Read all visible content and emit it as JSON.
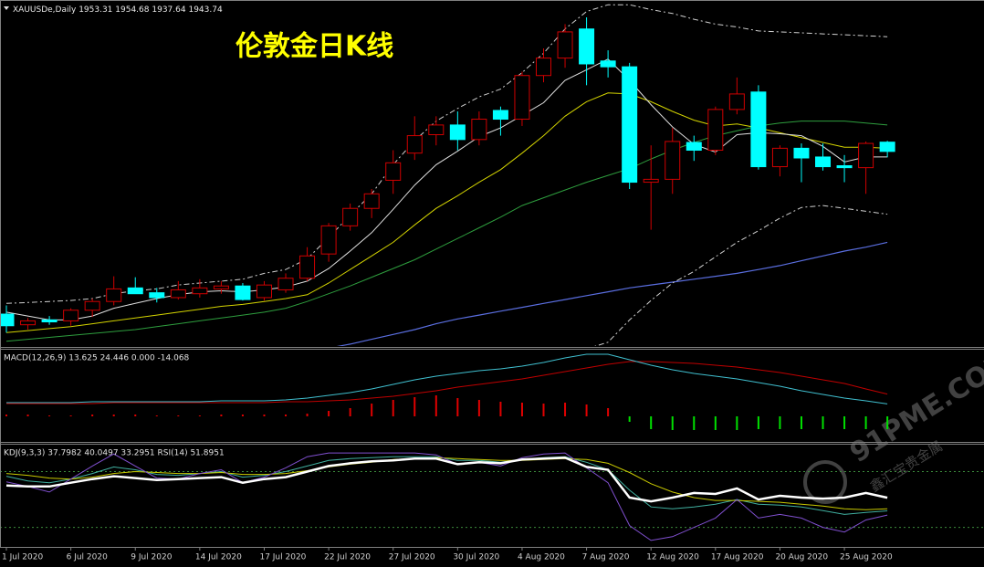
{
  "chart_data": [
    {
      "type": "candlestick",
      "header": "XAUUSDe,Daily",
      "title": "伦敦金日K线",
      "title_color": "#ffff00",
      "categories": [
        "1 Jul 2020",
        null,
        null,
        "6 Jul 2020",
        null,
        null,
        "9 Jul 2020",
        null,
        null,
        "14 Jul 2020",
        null,
        null,
        "17 Jul 2020",
        null,
        null,
        "22 Jul 2020",
        null,
        null,
        "27 Jul 2020",
        null,
        null,
        "30 Jul 2020",
        null,
        null,
        "4 Aug 2020",
        null,
        null,
        "7 Aug 2020",
        null,
        null,
        "12 Aug 2020",
        null,
        null,
        "17 Aug 2020",
        null,
        null,
        "20 Aug 2020",
        null,
        null,
        "25 Aug 2020",
        null,
        null
      ],
      "open": [
        1776,
        1765,
        1770,
        1769,
        1780,
        1789,
        1803,
        1798,
        1793,
        1797,
        1802,
        1805,
        1793,
        1801,
        1813,
        1838,
        1867,
        1885,
        1914,
        1942,
        1961,
        1971,
        1956,
        1986,
        1977,
        2022,
        2040,
        2070,
        2037,
        2031,
        1912,
        1915,
        1953,
        1945,
        1987,
        2005,
        1928,
        1947,
        1938,
        1929,
        1927,
        1953.31
      ],
      "high": [
        1785,
        1772,
        1774,
        1782,
        1792,
        1815,
        1814,
        1803,
        1810,
        1812,
        1810,
        1808,
        1810,
        1818,
        1845,
        1870,
        1890,
        1905,
        1945,
        1980,
        1980,
        1985,
        1985,
        1990,
        2026,
        2050,
        2075,
        2082,
        2048,
        2035,
        1950,
        1968,
        1960,
        1990,
        2020,
        2012,
        1950,
        1952,
        1952,
        1940,
        1954,
        1954.68
      ],
      "low": [
        1757,
        1760,
        1765,
        1764,
        1773,
        1785,
        1797,
        1788,
        1791,
        1793,
        1797,
        1790,
        1790,
        1798,
        1810,
        1830,
        1862,
        1875,
        1900,
        1935,
        1950,
        1945,
        1950,
        1960,
        1970,
        2015,
        2030,
        2012,
        2020,
        1905,
        1863,
        1900,
        1934,
        1940,
        1982,
        1925,
        1918,
        1912,
        1924,
        1912,
        1900,
        1937.64
      ],
      "close": [
        1764,
        1769,
        1768,
        1780,
        1789,
        1802,
        1797,
        1793,
        1801,
        1803,
        1805,
        1791,
        1806,
        1813,
        1836,
        1867,
        1885,
        1900,
        1932,
        1960,
        1971,
        1956,
        1977,
        1977,
        2022,
        2040,
        2067,
        2034,
        2031,
        1912,
        1915,
        1954,
        1945,
        1987,
        2003,
        1928,
        1947,
        1937,
        1928,
        1927,
        1952,
        1943.74
      ],
      "up_color": "#d00000",
      "down_color": "#00ffff",
      "ylim": [
        1744,
        2098
      ],
      "series": [
        {
          "color": "#5a6ee0",
          "line_width": 1.2,
          "values": [
            null,
            null,
            null,
            null,
            null,
            null,
            null,
            null,
            null,
            null,
            null,
            null,
            null,
            null,
            null,
            1741,
            1745,
            1750,
            1755,
            1760,
            1766,
            1771,
            1775,
            1779,
            1783,
            1787,
            1791,
            1795,
            1799,
            1803,
            1806,
            1809,
            1812,
            1815,
            1818,
            1822,
            1826,
            1831,
            1836,
            1841,
            1845,
            1850
          ]
        },
        {
          "color": "#2e9e3e",
          "line_width": 1,
          "values": [
            1748,
            1750,
            1752,
            1754,
            1756,
            1758,
            1760,
            1763,
            1766,
            1769,
            1772,
            1775,
            1778,
            1782,
            1789,
            1797,
            1805,
            1814,
            1823,
            1832,
            1843,
            1854,
            1865,
            1876,
            1888,
            1896,
            1904,
            1912,
            1919,
            1926,
            1936,
            1945,
            1953,
            1960,
            1965,
            1970,
            1973,
            1975,
            1975,
            1975,
            1973,
            1971
          ]
        },
        {
          "color": "#d4d400",
          "line_width": 1,
          "values": [
            1757,
            1759,
            1761,
            1763,
            1766,
            1769,
            1772,
            1775,
            1778,
            1781,
            1784,
            1786,
            1789,
            1792,
            1796,
            1808,
            1822,
            1836,
            1850,
            1868,
            1885,
            1898,
            1912,
            1925,
            1942,
            1960,
            1980,
            1995,
            2004,
            2003,
            1995,
            1985,
            1976,
            1970,
            1972,
            1968,
            1963,
            1958,
            1953,
            1948,
            1948,
            1947
          ]
        },
        {
          "color": "#e0e0e0",
          "line_width": 1,
          "values": [
            1778,
            1774,
            1770,
            1770,
            1774,
            1782,
            1787,
            1792,
            1796,
            1799,
            1800,
            1799,
            1801,
            1804,
            1810,
            1823,
            1841,
            1860,
            1884,
            1909,
            1930,
            1944,
            1959,
            1968,
            1981,
            1994,
            2017,
            2028,
            2039,
            2017,
            1992,
            1969,
            1951,
            1943,
            1961,
            1963,
            1962,
            1960,
            1949,
            1933,
            1938,
            1938
          ]
        },
        {
          "color": "#d0d0d0",
          "line_width": 1,
          "dash": true,
          "values": [
            1787,
            1788,
            1789,
            1790,
            1792,
            1797,
            1800,
            1802,
            1806,
            1808,
            1810,
            1812,
            1818,
            1822,
            1833,
            1855,
            1878,
            1900,
            1930,
            1955,
            1975,
            1988,
            2000,
            2008,
            2025,
            2045,
            2070,
            2088,
            2095,
            2095,
            2090,
            2086,
            2080,
            2075,
            2072,
            2068,
            2067,
            2066,
            2065,
            2064,
            2063,
            2062
          ]
        },
        {
          "color": "#d0d0d0",
          "line_width": 1,
          "dash": true,
          "values": [
            null,
            null,
            null,
            null,
            null,
            null,
            null,
            null,
            null,
            null,
            null,
            null,
            null,
            null,
            null,
            null,
            null,
            null,
            null,
            null,
            null,
            null,
            null,
            null,
            null,
            null,
            null,
            1740,
            1747,
            1770,
            1790,
            1808,
            1820,
            1835,
            1850,
            1862,
            1875,
            1886,
            1888,
            1885,
            1882,
            1879
          ]
        }
      ]
    },
    {
      "type": "macd",
      "title": "MACD(12,26,9) 13.625 24.446 0.000 -14.068",
      "ylim": [
        -28,
        72
      ],
      "histogram": {
        "up_color": "#e00000",
        "down_color": "#00e000",
        "values": [
          2,
          2,
          1,
          1,
          2,
          2,
          2,
          1,
          1,
          1,
          2,
          2,
          2,
          2,
          3,
          6,
          9,
          14,
          18,
          21,
          23,
          20,
          18,
          16,
          15,
          14,
          15,
          13,
          9,
          -6,
          -14,
          -15,
          -15,
          -15,
          -15,
          -14,
          -14,
          -14,
          -14,
          -14,
          -14,
          -14.068
        ]
      },
      "series": [
        {
          "color": "#c00000",
          "line_width": 1,
          "values": [
            14,
            14,
            14,
            14,
            14,
            15,
            15,
            15,
            15,
            15,
            15,
            15,
            15,
            16,
            16,
            17,
            18,
            20,
            22,
            25,
            28,
            32,
            35,
            38,
            41,
            45,
            49,
            53,
            57,
            60,
            60,
            59,
            58,
            56,
            54,
            51,
            48,
            44,
            40,
            36,
            30,
            24.446
          ]
        },
        {
          "color": "#40c0d0",
          "line_width": 1,
          "values": [
            15,
            15,
            15,
            15,
            16,
            16,
            16,
            16,
            16,
            16,
            17,
            17,
            17,
            18,
            20,
            23,
            26,
            30,
            35,
            40,
            44,
            47,
            50,
            52,
            55,
            59,
            64,
            68,
            68,
            62,
            56,
            51,
            47,
            44,
            41,
            37,
            33,
            28,
            24,
            20,
            17,
            13.625
          ]
        }
      ]
    },
    {
      "type": "kdj",
      "title": "KDJ(9,3,3) 37.7982 40.0497 33.2951  RSI(14) 51.8951",
      "ylim": [
        0,
        108
      ],
      "levels": [
        20,
        80
      ],
      "level_color": "#3c8c3c",
      "series": [
        {
          "color": "#40b0a0",
          "line_width": 1,
          "values": [
            75,
            70,
            68,
            72,
            78,
            85,
            82,
            77,
            76,
            78,
            80,
            74,
            76,
            80,
            86,
            92,
            94,
            95,
            96,
            96,
            96,
            92,
            92,
            90,
            93,
            95,
            96,
            90,
            82,
            60,
            42,
            40,
            42,
            45,
            50,
            45,
            44,
            42,
            38,
            34,
            36,
            37.7982
          ]
        },
        {
          "color": "#c8c800",
          "line_width": 1,
          "values": [
            78,
            76,
            73,
            72,
            74,
            78,
            80,
            79,
            78,
            78,
            79,
            77,
            77,
            78,
            81,
            85,
            88,
            90,
            93,
            94,
            95,
            94,
            93,
            92,
            92,
            93,
            94,
            93,
            89,
            79,
            67,
            58,
            52,
            49,
            49,
            48,
            47,
            45,
            43,
            40,
            39,
            40.0497
          ]
        },
        {
          "color": "#8050d0",
          "line_width": 1,
          "values": [
            69,
            64,
            58,
            72,
            86,
            99,
            86,
            73,
            72,
            78,
            82,
            68,
            74,
            84,
            96,
            100,
            100,
            100,
            100,
            100,
            98,
            88,
            90,
            86,
            95,
            99,
            100,
            84,
            68,
            22,
            6,
            10,
            20,
            30,
            50,
            30,
            34,
            30,
            20,
            15,
            28,
            33.2951
          ]
        },
        {
          "color": "#ffffff",
          "line_width": 2.5,
          "values": [
            65,
            64,
            64,
            68,
            72,
            75,
            73,
            71,
            72,
            73,
            74,
            68,
            72,
            74,
            80,
            86,
            89,
            91,
            92,
            94,
            94,
            88,
            90,
            89,
            93,
            94,
            95,
            85,
            82,
            52,
            48,
            52,
            57,
            56,
            62,
            50,
            54,
            52,
            51,
            52,
            57,
            51.8951
          ]
        }
      ]
    }
  ],
  "watermark": {
    "site": "91PME.COM",
    "name": "鑫汇宝贵金属"
  }
}
